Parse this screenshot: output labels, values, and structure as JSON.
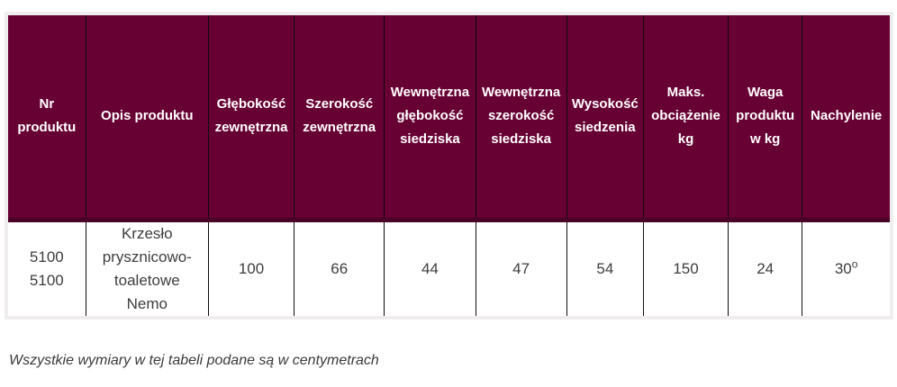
{
  "table": {
    "headers": [
      "Nr\nproduktu",
      "Opis produktu",
      "Głębokość\nzewnętrzna",
      "Szerokość\nzewnętrzna",
      "Wewnętrzna\ngłębokość\nsiedziska",
      "Wewnętrzna\nszerokość\nsiedziska",
      "Wysokość\nsiedzenia",
      "Maks.\nobciążenie\nkg",
      "Waga\nproduktu\nw kg",
      "Nachylenie"
    ],
    "row": {
      "nr_produktu": "5100\n5100",
      "opis_produktu": "Krzesło\nprysznicowo-\ntoaletowe\nNemo",
      "glebokosc_zewnetrzna": "100",
      "szerokosc_zewnetrzna": "66",
      "wewnetrzna_glebokosc_siedziska": "44",
      "wewnetrzna_szerokosc_siedziska": "47",
      "wysokosc_siedzenia": "54",
      "maks_obciazenie_kg": "150",
      "waga_produktu_w_kg": "24",
      "nachylenie_value": "30",
      "nachylenie_sup": "o"
    }
  },
  "footnote": "Wszystkie wymiary w tej tabeli podane są w centymetrach",
  "colors": {
    "header_background": "#670033",
    "header_text": "#ffffff",
    "header_body_separator": "#4a0126",
    "column_divider": "#0d0d0d",
    "outer_border": "#f0edee",
    "body_text": "#3d3d3d",
    "page_background": "#ffffff"
  }
}
